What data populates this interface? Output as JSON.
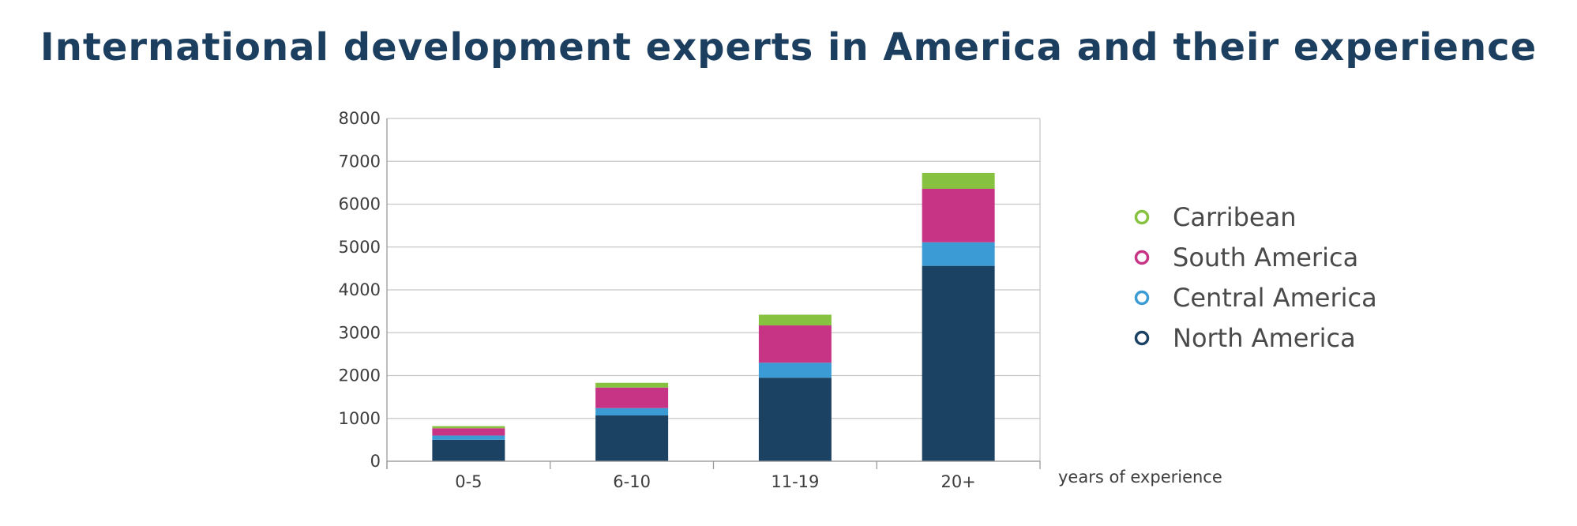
{
  "chart_data": {
    "type": "bar",
    "stacked": true,
    "title": "International development experts in America and their experience",
    "xlabel": "years of experience",
    "ylabel": "",
    "ylim": [
      0,
      8000
    ],
    "yticks": [
      0,
      1000,
      2000,
      3000,
      4000,
      5000,
      6000,
      7000,
      8000
    ],
    "grid": true,
    "legend_position": "right",
    "categories": [
      "0-5",
      "6-10",
      "11-19",
      "20+"
    ],
    "series": [
      {
        "name": "North America",
        "color": "#1c4263",
        "values": [
          500,
          1070,
          1950,
          4560
        ]
      },
      {
        "name": "Central America",
        "color": "#3a9bd5",
        "values": [
          100,
          170,
          350,
          550
        ]
      },
      {
        "name": "South America",
        "color": "#c83485",
        "values": [
          170,
          480,
          870,
          1250
        ]
      },
      {
        "name": "Carribean",
        "color": "#86c23f",
        "values": [
          50,
          110,
          250,
          370
        ]
      }
    ],
    "legend_order": [
      "Carribean",
      "South America",
      "Central America",
      "North America"
    ]
  }
}
